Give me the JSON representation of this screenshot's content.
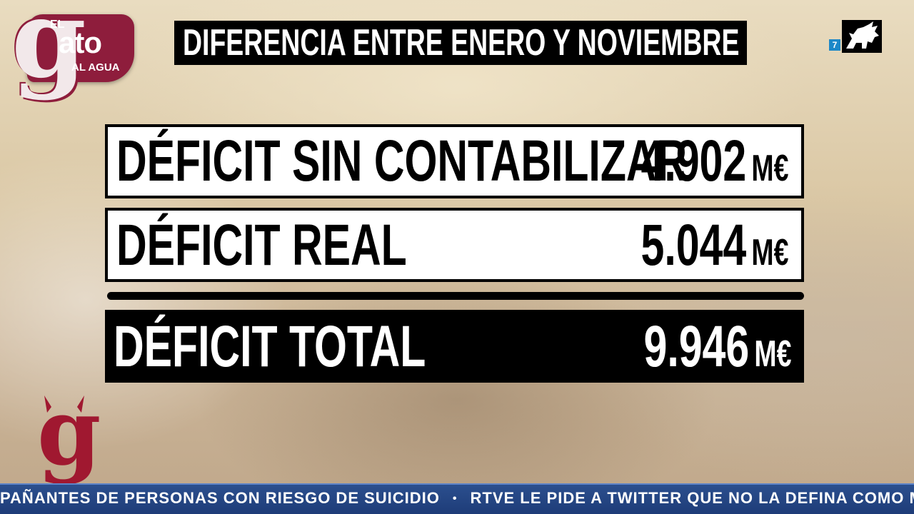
{
  "logo": {
    "el": "EL",
    "g": "g",
    "ato": "ato",
    "al_agua": "AL AGUA"
  },
  "title": "DIFERENCIA ENTRE ENERO Y NOVIEMBRE",
  "channel": {
    "number": "7"
  },
  "rows": [
    {
      "label": "DÉFICIT SIN CONTABILIZAR",
      "value": "4.902",
      "unit": "M€"
    },
    {
      "label": "DÉFICIT REAL",
      "value": "5.044",
      "unit": "M€"
    },
    {
      "label": "DÉFICIT TOTAL",
      "value": "9.946",
      "unit": "M€"
    }
  ],
  "watermark": {
    "g": "g"
  },
  "ticker": {
    "items": [
      "PAÑANTES DE PERSONAS CON RIESGO DE SUICIDIO",
      "RTVE LE PIDE A TWITTER QUE NO LA DEFINA COMO MEDIO FINANCIADO POR EL"
    ],
    "separator": "•"
  },
  "colors": {
    "brand": "#8e1d3c",
    "ticker": "#1e3c78",
    "channel_accent": "#1c88c8"
  }
}
